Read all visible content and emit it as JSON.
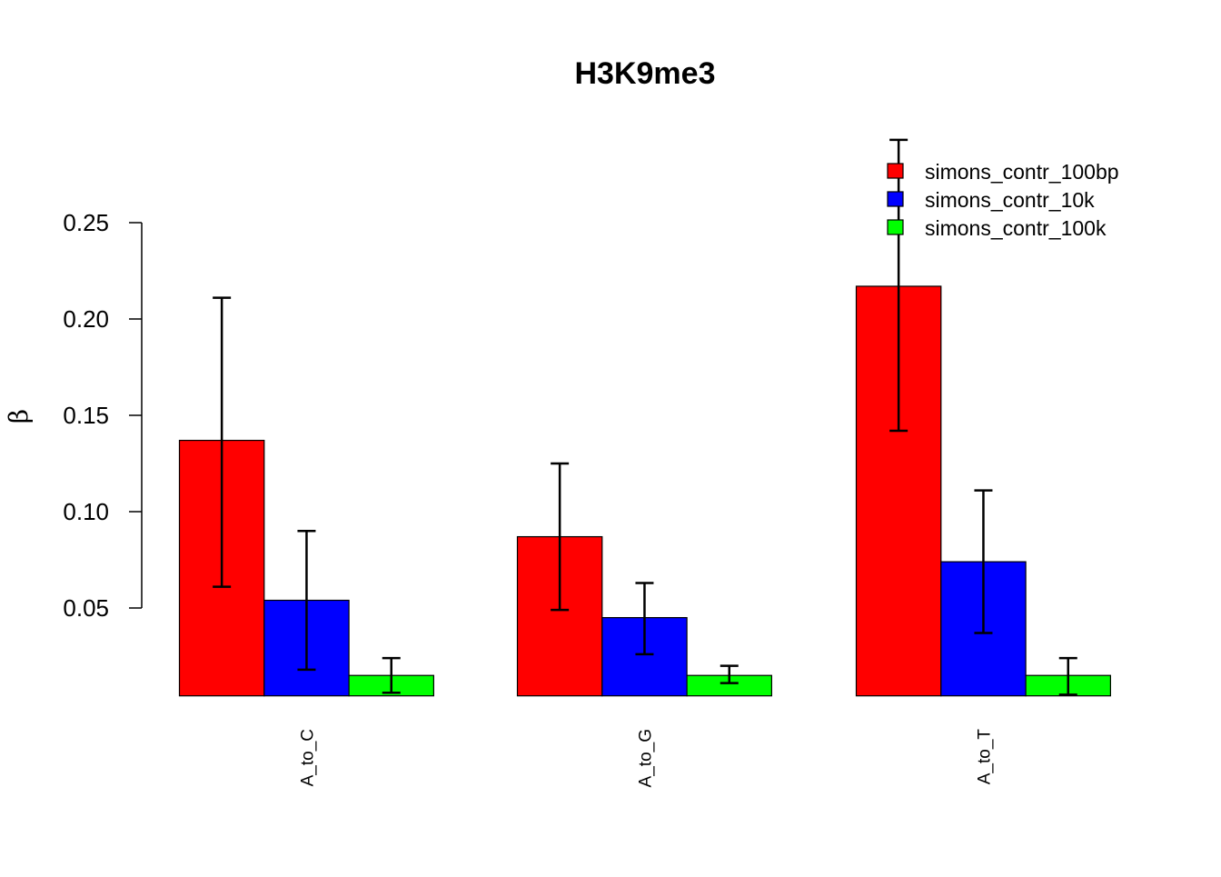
{
  "chart_data": {
    "type": "bar",
    "title": "H3K9me3",
    "xlabel": "",
    "ylabel": "β",
    "categories": [
      "A_to_C",
      "A_to_G",
      "A_to_T"
    ],
    "yticks": [
      0.05,
      0.1,
      0.15,
      0.2,
      0.25
    ],
    "ytick_labels": [
      "0.05",
      "0.10",
      "0.15",
      "0.20",
      "0.25"
    ],
    "ylim": [
      0.0044,
      0.29
    ],
    "grid": false,
    "legend_position": "top-right",
    "series": [
      {
        "name": "simons_contr_100bp",
        "color": "#ff0000",
        "values": [
          0.137,
          0.087,
          0.217
        ],
        "err_low": [
          0.061,
          0.049,
          0.142
        ],
        "err_high": [
          0.211,
          0.125,
          0.293
        ]
      },
      {
        "name": "simons_contr_10k",
        "color": "#0000ff",
        "values": [
          0.054,
          0.045,
          0.074
        ],
        "err_low": [
          0.018,
          0.026,
          0.037
        ],
        "err_high": [
          0.09,
          0.063,
          0.111
        ]
      },
      {
        "name": "simons_contr_100k",
        "color": "#00ff00",
        "values": [
          0.015,
          0.015,
          0.015
        ],
        "err_low": [
          0.006,
          0.011,
          0.005
        ],
        "err_high": [
          0.024,
          0.02,
          0.024
        ]
      }
    ]
  }
}
